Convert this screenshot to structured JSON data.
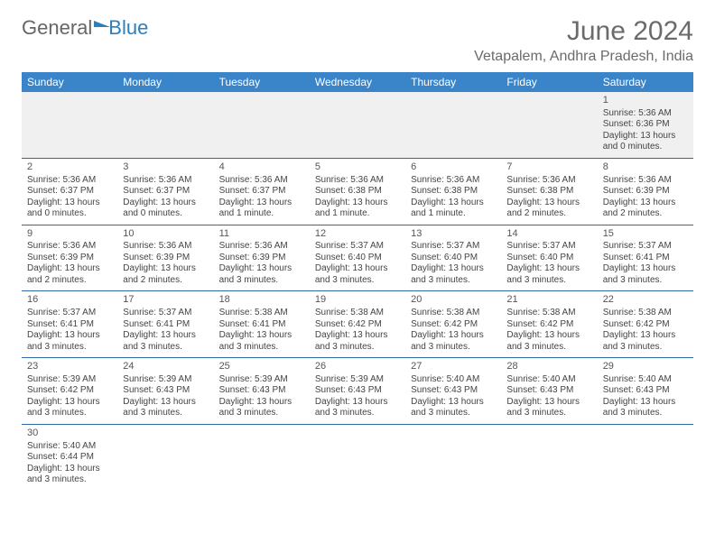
{
  "logo": {
    "text1": "General",
    "text2": "Blue"
  },
  "title": "June 2024",
  "location": "Vetapalem, Andhra Pradesh, India",
  "colors": {
    "header_bg": "#3a85c9",
    "header_text": "#ffffff",
    "border": "#2f6aa8",
    "title_color": "#6b6b6b",
    "empty_bg": "#f0f0f0"
  },
  "day_headers": [
    "Sunday",
    "Monday",
    "Tuesday",
    "Wednesday",
    "Thursday",
    "Friday",
    "Saturday"
  ],
  "weeks": [
    [
      null,
      null,
      null,
      null,
      null,
      null,
      {
        "n": "1",
        "sr": "5:36 AM",
        "ss": "6:36 PM",
        "dl": "13 hours and 0 minutes."
      }
    ],
    [
      {
        "n": "2",
        "sr": "5:36 AM",
        "ss": "6:37 PM",
        "dl": "13 hours and 0 minutes."
      },
      {
        "n": "3",
        "sr": "5:36 AM",
        "ss": "6:37 PM",
        "dl": "13 hours and 0 minutes."
      },
      {
        "n": "4",
        "sr": "5:36 AM",
        "ss": "6:37 PM",
        "dl": "13 hours and 1 minute."
      },
      {
        "n": "5",
        "sr": "5:36 AM",
        "ss": "6:38 PM",
        "dl": "13 hours and 1 minute."
      },
      {
        "n": "6",
        "sr": "5:36 AM",
        "ss": "6:38 PM",
        "dl": "13 hours and 1 minute."
      },
      {
        "n": "7",
        "sr": "5:36 AM",
        "ss": "6:38 PM",
        "dl": "13 hours and 2 minutes."
      },
      {
        "n": "8",
        "sr": "5:36 AM",
        "ss": "6:39 PM",
        "dl": "13 hours and 2 minutes."
      }
    ],
    [
      {
        "n": "9",
        "sr": "5:36 AM",
        "ss": "6:39 PM",
        "dl": "13 hours and 2 minutes."
      },
      {
        "n": "10",
        "sr": "5:36 AM",
        "ss": "6:39 PM",
        "dl": "13 hours and 2 minutes."
      },
      {
        "n": "11",
        "sr": "5:36 AM",
        "ss": "6:39 PM",
        "dl": "13 hours and 3 minutes."
      },
      {
        "n": "12",
        "sr": "5:37 AM",
        "ss": "6:40 PM",
        "dl": "13 hours and 3 minutes."
      },
      {
        "n": "13",
        "sr": "5:37 AM",
        "ss": "6:40 PM",
        "dl": "13 hours and 3 minutes."
      },
      {
        "n": "14",
        "sr": "5:37 AM",
        "ss": "6:40 PM",
        "dl": "13 hours and 3 minutes."
      },
      {
        "n": "15",
        "sr": "5:37 AM",
        "ss": "6:41 PM",
        "dl": "13 hours and 3 minutes."
      }
    ],
    [
      {
        "n": "16",
        "sr": "5:37 AM",
        "ss": "6:41 PM",
        "dl": "13 hours and 3 minutes."
      },
      {
        "n": "17",
        "sr": "5:37 AM",
        "ss": "6:41 PM",
        "dl": "13 hours and 3 minutes."
      },
      {
        "n": "18",
        "sr": "5:38 AM",
        "ss": "6:41 PM",
        "dl": "13 hours and 3 minutes."
      },
      {
        "n": "19",
        "sr": "5:38 AM",
        "ss": "6:42 PM",
        "dl": "13 hours and 3 minutes."
      },
      {
        "n": "20",
        "sr": "5:38 AM",
        "ss": "6:42 PM",
        "dl": "13 hours and 3 minutes."
      },
      {
        "n": "21",
        "sr": "5:38 AM",
        "ss": "6:42 PM",
        "dl": "13 hours and 3 minutes."
      },
      {
        "n": "22",
        "sr": "5:38 AM",
        "ss": "6:42 PM",
        "dl": "13 hours and 3 minutes."
      }
    ],
    [
      {
        "n": "23",
        "sr": "5:39 AM",
        "ss": "6:42 PM",
        "dl": "13 hours and 3 minutes."
      },
      {
        "n": "24",
        "sr": "5:39 AM",
        "ss": "6:43 PM",
        "dl": "13 hours and 3 minutes."
      },
      {
        "n": "25",
        "sr": "5:39 AM",
        "ss": "6:43 PM",
        "dl": "13 hours and 3 minutes."
      },
      {
        "n": "26",
        "sr": "5:39 AM",
        "ss": "6:43 PM",
        "dl": "13 hours and 3 minutes."
      },
      {
        "n": "27",
        "sr": "5:40 AM",
        "ss": "6:43 PM",
        "dl": "13 hours and 3 minutes."
      },
      {
        "n": "28",
        "sr": "5:40 AM",
        "ss": "6:43 PM",
        "dl": "13 hours and 3 minutes."
      },
      {
        "n": "29",
        "sr": "5:40 AM",
        "ss": "6:43 PM",
        "dl": "13 hours and 3 minutes."
      }
    ],
    [
      {
        "n": "30",
        "sr": "5:40 AM",
        "ss": "6:44 PM",
        "dl": "13 hours and 3 minutes."
      },
      null,
      null,
      null,
      null,
      null,
      null
    ]
  ],
  "labels": {
    "sunrise": "Sunrise: ",
    "sunset": "Sunset: ",
    "daylight": "Daylight: "
  }
}
